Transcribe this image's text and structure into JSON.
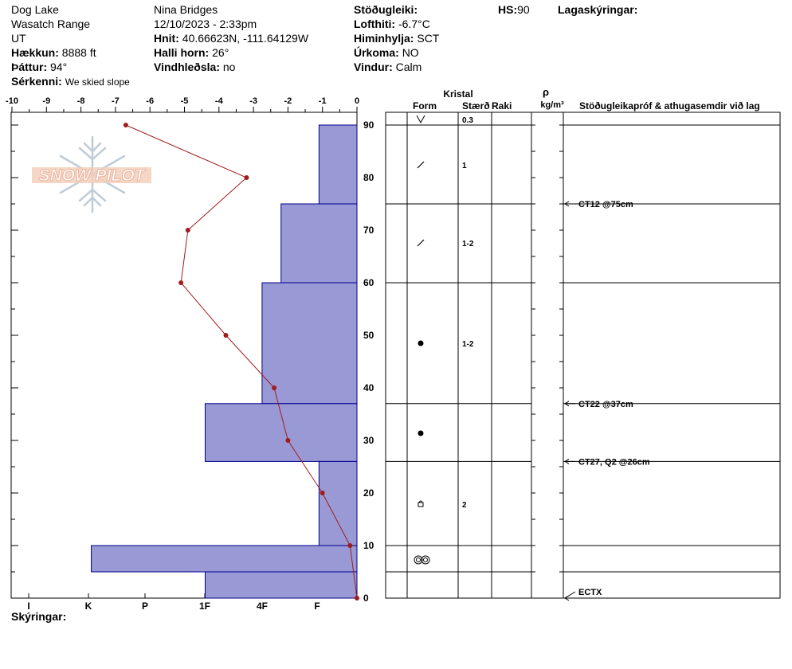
{
  "site": {
    "location": "Dog Lake",
    "range": "Wasatch Range",
    "state": "UT",
    "elevation_label": "Hækkun:",
    "elevation_value": "8888 ft",
    "aspect_label": "Þáttur:",
    "aspect_value": "94°",
    "features_label": "Sérkenni:",
    "features_value": "We skied slope"
  },
  "observer": {
    "name": "Nina Bridges",
    "datetime": "12/10/2023 - 2:33pm",
    "coords_label": "Hnit:",
    "coords_value": "40.66623N, -111.64129W",
    "slope_label": "Halli horn:",
    "slope_value": "26°",
    "wind_loading_label": "Vindhleðsla:",
    "wind_loading_value": "no"
  },
  "conditions": {
    "stability_label": "Stöðugleiki:",
    "air_temp_label": "Lofthiti:",
    "air_temp_value": "-6.7°C",
    "sky_label": "Himinhylja:",
    "sky_value": "SCT",
    "precip_label": "Úrkoma:",
    "precip_value": "NO",
    "wind_label": "Vindur:",
    "wind_value": "Calm"
  },
  "hs": {
    "label": "HS:",
    "value": "90"
  },
  "legend_label": "Lagaskýringar:",
  "notes_label": "Skýringar:",
  "logo_text": "SNOW PILOT",
  "columns": {
    "crystal_header": "Kristal",
    "form_header": "Form",
    "size_header": "Stærð",
    "moisture_header": "Raki",
    "density_symbol": "ρ",
    "density_unit": "kg/m³",
    "tests_header": "Stöðugleikapróf & athugasemdir við lag"
  },
  "colors": {
    "hardness_fill": "#9999d6",
    "hardness_stroke": "#00008b",
    "temp_line": "#a01c1c"
  },
  "chart_data": {
    "type": "snow-profile",
    "temp_axis": {
      "ticks": [
        "-10",
        "-9",
        "-8",
        "-7",
        "-6",
        "-5",
        "-4",
        "-3",
        "-2",
        "-1",
        "0"
      ],
      "range": [
        -10,
        0
      ]
    },
    "depth_axis": {
      "ticks": [
        "0",
        "10",
        "20",
        "30",
        "40",
        "50",
        "60",
        "70",
        "80",
        "90"
      ],
      "range": [
        0,
        90
      ]
    },
    "hardness_axis": {
      "ticks": [
        "I",
        "K",
        "P",
        "1F",
        "4F",
        "F"
      ]
    },
    "temperature": [
      {
        "depth": 90,
        "temp": -6.7
      },
      {
        "depth": 80,
        "temp": -3.2
      },
      {
        "depth": 70,
        "temp": -4.9
      },
      {
        "depth": 60,
        "temp": -5.1
      },
      {
        "depth": 50,
        "temp": -3.8
      },
      {
        "depth": 40,
        "temp": -2.4
      },
      {
        "depth": 30,
        "temp": -2.0
      },
      {
        "depth": 20,
        "temp": -1.0
      },
      {
        "depth": 10,
        "temp": -0.2
      },
      {
        "depth": 0,
        "temp": 0.0
      }
    ],
    "layers": [
      {
        "top": 90,
        "bottom": 75,
        "hardness": 1.1,
        "form": "precip",
        "size": "0.3",
        "hide_size_row": false
      },
      {
        "top": 75,
        "bottom": 60,
        "hardness": 2.2,
        "form": "decomposing",
        "size": "1",
        "hide_size_row": true
      },
      {
        "top": 60,
        "bottom": 37,
        "hardness": 2.75,
        "form": "decomposing",
        "size": "1-2",
        "hide_size_row": true
      },
      {
        "top": 37,
        "bottom": 26,
        "hardness": 4.4,
        "form": "rounded",
        "size": "1-2",
        "hide_size_row": true
      },
      {
        "top": 26,
        "bottom": 10,
        "hardness": 1.1,
        "form": "rounded",
        "size": "",
        "hide_size_row": true
      },
      {
        "top": 10,
        "bottom": 5,
        "hardness": 7.7,
        "form": "melt-freeze",
        "size": "2",
        "hide_size_row": true
      },
      {
        "top": 5,
        "bottom": 0,
        "hardness": 4.4,
        "form": "melt-freeze",
        "size": "",
        "hide_size_row": true
      }
    ],
    "layer_symbols": [
      {
        "depth": 90,
        "symbol": "precip",
        "size": "0.3"
      },
      {
        "depth": 82.5,
        "symbol": "decomposing",
        "size": "1"
      },
      {
        "depth": 67.5,
        "symbol": "decomposing",
        "size": "1-2"
      },
      {
        "depth": 48.5,
        "symbol": "rounded",
        "size": "1-2"
      },
      {
        "depth": 31.5,
        "symbol": "rounded",
        "size": ""
      },
      {
        "depth": 18,
        "symbol": "faceted-rounded",
        "size": "2"
      },
      {
        "depth": 7.5,
        "symbol": "melt-freeze",
        "size": ""
      }
    ],
    "tests": [
      {
        "depth": 75,
        "label": "CT12 @75cm"
      },
      {
        "depth": 37,
        "label": "CT22 @37cm"
      },
      {
        "depth": 26,
        "label": "CT27, Q2 @26cm"
      },
      {
        "depth": 0,
        "label": "ECTX"
      }
    ]
  }
}
